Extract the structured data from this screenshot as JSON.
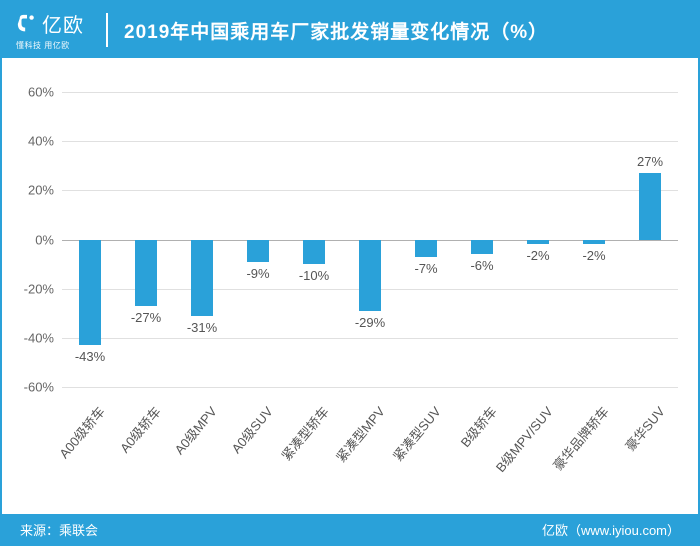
{
  "brand": {
    "name": "亿欧",
    "tagline": "懂科技 用亿欧"
  },
  "title": "2019年中国乘用车厂家批发销量变化情况（%）",
  "chart": {
    "type": "bar",
    "categories": [
      "A00级轿车",
      "A0级轿车",
      "A0级MPV",
      "A0级SUV",
      "紧凑型轿车",
      "紧凑型MPV",
      "紧凑型SUV",
      "B级轿车",
      "B级MPV/SUV",
      "豪华品牌轿车",
      "豪华SUV"
    ],
    "values": [
      -43,
      -27,
      -31,
      -9,
      -10,
      -29,
      -7,
      -6,
      -2,
      -2,
      27
    ],
    "value_labels": [
      "-43%",
      "-27%",
      "-31%",
      "-9%",
      "-10%",
      "-29%",
      "-7%",
      "-6%",
      "-2%",
      "-2%",
      "27%"
    ],
    "bar_color": "#2aa1d9",
    "ylim": [
      -60,
      60
    ],
    "ytick_step": 20,
    "ytick_labels": [
      "-60%",
      "-40%",
      "-20%",
      "0%",
      "20%",
      "40%",
      "60%"
    ],
    "grid_color": "#e0e0e0",
    "zero_color": "#b0b0b0",
    "background_color": "#ffffff",
    "label_fontsize": 13,
    "label_color": "#555555",
    "bar_width_ratio": 0.4
  },
  "footer": {
    "source_label": "来源：乘联会",
    "credit": "亿欧（www.iyiou.com）"
  },
  "colors": {
    "brand": "#2aa1d9",
    "text": "#555555",
    "white": "#ffffff"
  }
}
